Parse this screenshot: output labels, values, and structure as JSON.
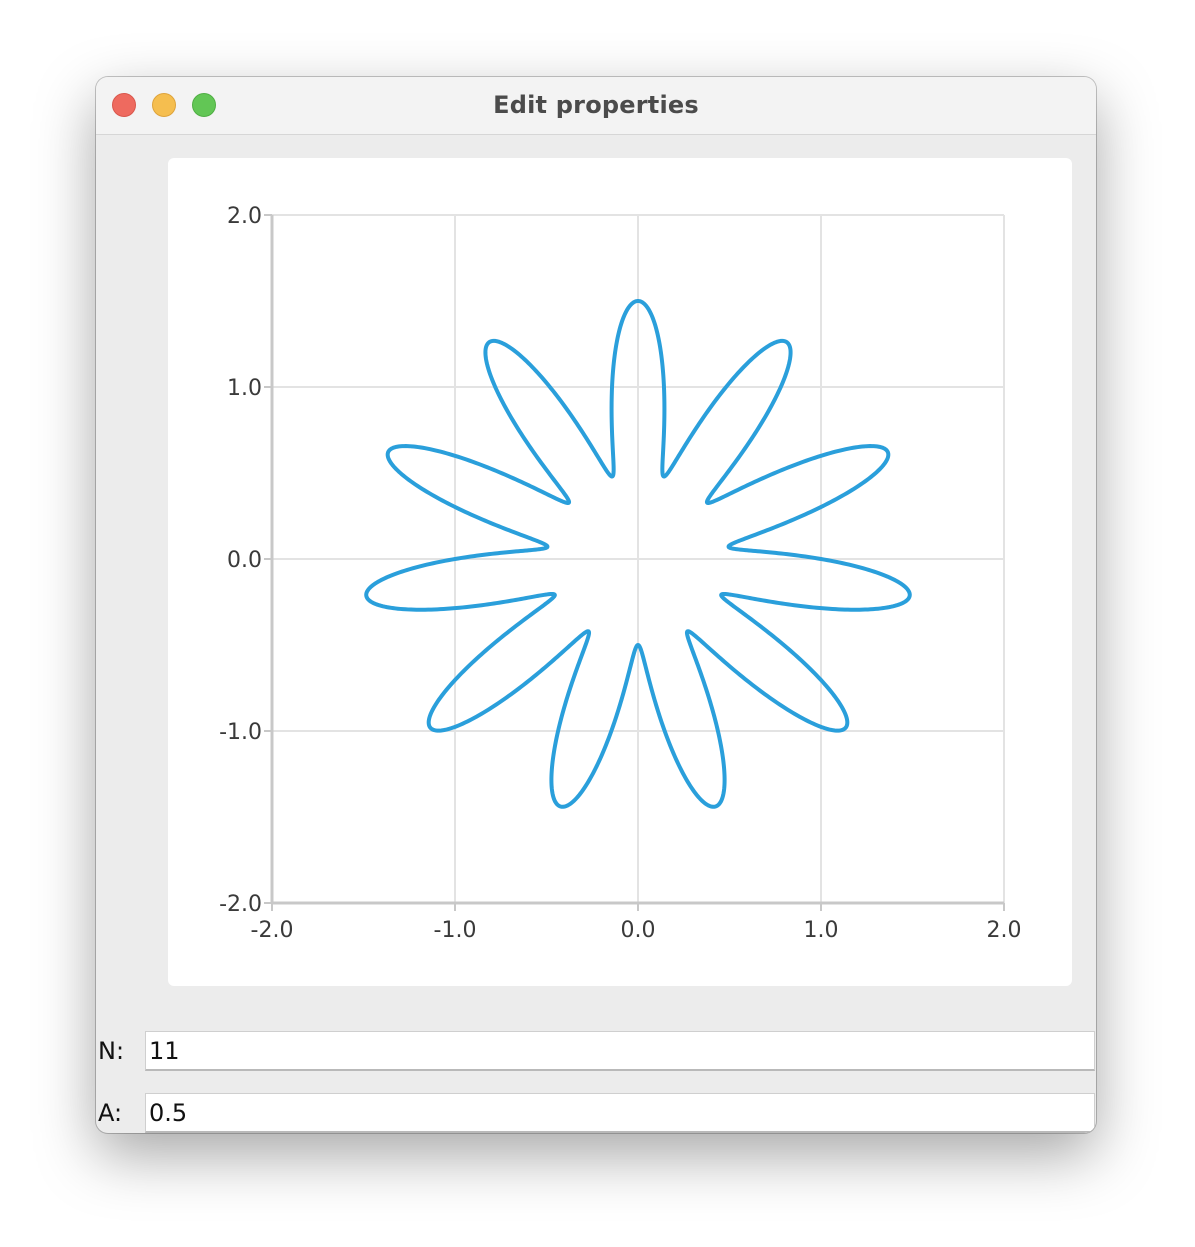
{
  "window": {
    "title": "Edit properties"
  },
  "fields": [
    {
      "label": "N:",
      "value": "11"
    },
    {
      "label": "A:",
      "value": "0.5"
    }
  ],
  "colors": {
    "curve": "#2a9fdb",
    "grid": "#e3e3e3",
    "axis": "#c8c8c8"
  },
  "chart_data": {
    "type": "line",
    "title": "",
    "xlabel": "",
    "ylabel": "",
    "xlim": [
      -2.0,
      2.0
    ],
    "ylim": [
      -2.0,
      2.0
    ],
    "grid": true,
    "x_ticks": [
      "-2.0",
      "-1.0",
      "0.0",
      "1.0",
      "2.0"
    ],
    "y_ticks": [
      "2.0",
      "1.0",
      "0.0",
      "-1.0",
      "-2.0"
    ],
    "curve": {
      "kind": "polar rose r = 1 + A*cos(N*theta), rotated so one petal points up",
      "N": 11,
      "A": 0.5,
      "r_max": 1.5,
      "r_min": 0.5
    }
  }
}
